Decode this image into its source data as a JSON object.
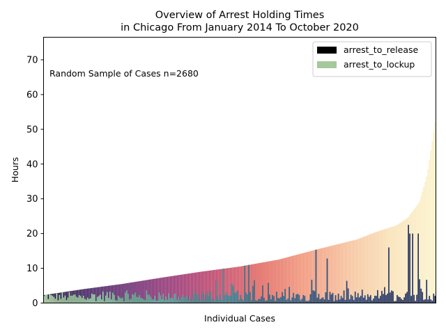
{
  "chart_data": {
    "type": "bar",
    "title": [
      "Overview of Arrest Holding Times",
      "in Chicago From January 2014 To October 2020"
    ],
    "xlabel": "Individual Cases",
    "ylabel": "Hours",
    "ylim": [
      0,
      76.5
    ],
    "yticks": [
      "0",
      "10",
      "20",
      "30",
      "40",
      "50",
      "60",
      "70"
    ],
    "annotation": "Random Sample of Cases n=2680",
    "legend_position": "top-right",
    "grid": false,
    "series": [
      {
        "name": "arrest_to_release",
        "legend_color": "#000000",
        "palette": "magma-like gradient (dark purple to pale yellow)"
      },
      {
        "name": "arrest_to_lockup",
        "legend_color": "#a5c99a",
        "palette": "crest-like gradient (light green to dark navy)"
      }
    ],
    "release_profile": {
      "description": "sorted ascending arrest_to_release hours across cases",
      "fraction": [
        0.0,
        0.1,
        0.2,
        0.3,
        0.4,
        0.5,
        0.6,
        0.7,
        0.8,
        0.85,
        0.9,
        0.93,
        0.96,
        0.98,
        1.0
      ],
      "hours": [
        2.3,
        4.0,
        5.5,
        7.3,
        9.0,
        10.5,
        12.5,
        15.5,
        18.3,
        20.5,
        22.3,
        24.5,
        29.0,
        37.0,
        52.0
      ]
    },
    "lockup_profile": {
      "description": "arrest_to_lockup hours per case (typical values, with occasional spikes)",
      "typical_hours": [
        0.5,
        4.5
      ],
      "spikes_hours": [
        3,
        5,
        6,
        7,
        8,
        9,
        10,
        11,
        14,
        16,
        20,
        22.5,
        25
      ]
    }
  },
  "legend": {
    "release_label": "arrest_to_release",
    "lockup_label": "arrest_to_lockup"
  }
}
